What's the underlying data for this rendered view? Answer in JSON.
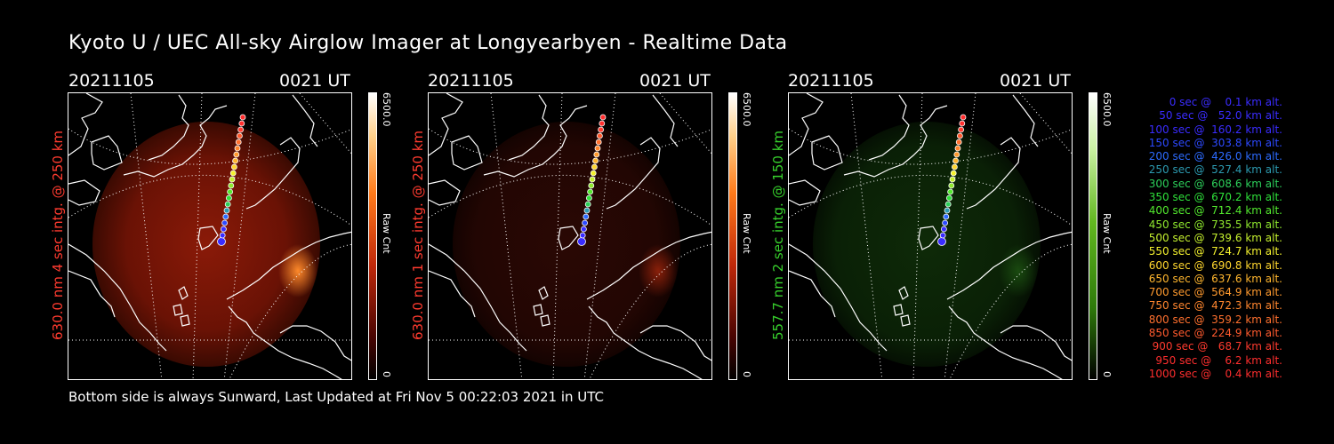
{
  "title": "Kyoto U / UEC All-sky Airglow Imager at Longyearbyen - Realtime Data",
  "footer": "Bottom side is always Sunward, Last Updated at Fri Nov  5 00:22:03 2021 in UTC",
  "panels": [
    {
      "date": "20211105",
      "time": "0021 UT",
      "side_label": "630.0 nm 4 sec intg. @ 250 km",
      "label_color": "#ff3b2f",
      "cbar_max": "6500.0",
      "cbar_unit": "Raw Cnt",
      "cbar_min": "0",
      "glow": "red-strong",
      "colorbar": "red"
    },
    {
      "date": "20211105",
      "time": "0021 UT",
      "side_label": "630.0 nm 1 sec intg. @ 250 km",
      "label_color": "#ff3b2f",
      "cbar_max": "6500.0",
      "cbar_unit": "Raw Cnt",
      "cbar_min": "0",
      "glow": "red-faint",
      "colorbar": "red"
    },
    {
      "date": "20211105",
      "time": "0021 UT",
      "side_label": "557.7 nm 2 sec intg. @ 150 km",
      "label_color": "#37d02c",
      "cbar_max": "6500.0",
      "cbar_unit": "Raw Cnt",
      "cbar_min": "0",
      "glow": "green",
      "colorbar": "green"
    }
  ],
  "legend": [
    {
      "text": "0 sec @    0.1 km alt.",
      "color": "#3a2cff"
    },
    {
      "text": "50 sec @   52.0 km alt.",
      "color": "#3a2cff"
    },
    {
      "text": "100 sec @  160.2 km alt.",
      "color": "#3a2cff"
    },
    {
      "text": "150 sec @  303.8 km alt.",
      "color": "#2c49ff"
    },
    {
      "text": "200 sec @  426.0 km alt.",
      "color": "#2c6bff"
    },
    {
      "text": "250 sec @  527.4 km alt.",
      "color": "#2c9ab0"
    },
    {
      "text": "300 sec @  608.6 km alt.",
      "color": "#2ccf5a"
    },
    {
      "text": "350 sec @  670.2 km alt.",
      "color": "#2ee03a"
    },
    {
      "text": "400 sec @  712.4 km alt.",
      "color": "#52e82e"
    },
    {
      "text": "450 sec @  735.5 km alt.",
      "color": "#8fe82e"
    },
    {
      "text": "500 sec @  739.6 km alt.",
      "color": "#c4ef2e"
    },
    {
      "text": "550 sec @  724.7 km alt.",
      "color": "#f3f12e"
    },
    {
      "text": "600 sec @  690.8 km alt.",
      "color": "#ffd62e"
    },
    {
      "text": "650 sec @  637.6 km alt.",
      "color": "#ffb62e"
    },
    {
      "text": "700 sec @  564.9 km alt.",
      "color": "#ff9a2e"
    },
    {
      "text": "750 sec @  472.3 km alt.",
      "color": "#ff862e"
    },
    {
      "text": "800 sec @  359.2 km alt.",
      "color": "#ff702e"
    },
    {
      "text": "850 sec @  224.9 km alt.",
      "color": "#ff5a2e"
    },
    {
      "text": "900 sec @   68.7 km alt.",
      "color": "#ff3a2e"
    },
    {
      "text": "950 sec @    6.2 km alt.",
      "color": "#ff2e2e"
    },
    {
      "text": "1000 sec @    0.4 km alt.",
      "color": "#ff2e2e"
    }
  ]
}
